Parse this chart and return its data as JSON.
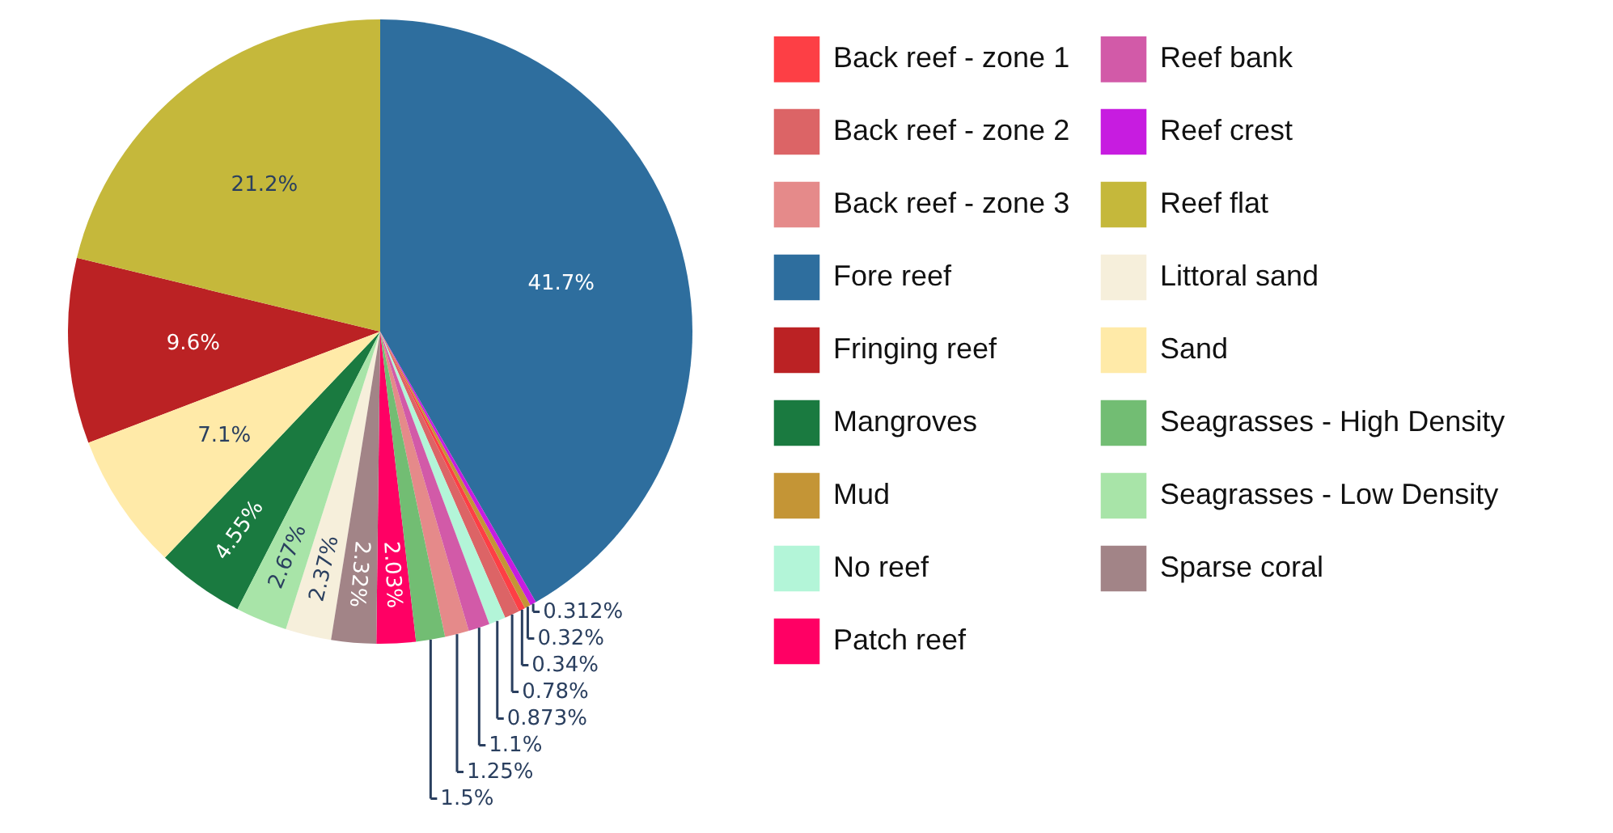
{
  "chart_data": {
    "type": "pie",
    "categories": [
      "Back reef - zone 1",
      "Back reef - zone 2",
      "Back reef - zone 3",
      "Fore reef",
      "Fringing reef",
      "Mangroves",
      "Mud",
      "No reef",
      "Patch reef",
      "Reef bank",
      "Reef crest",
      "Reef flat",
      "Littoral sand",
      "Sand",
      "Seagrasses - High Density",
      "Seagrasses - Low Density",
      "Sparse coral"
    ],
    "values": [
      0.34,
      0.78,
      1.25,
      41.7,
      9.6,
      4.55,
      0.32,
      0.873,
      2.03,
      1.1,
      0.312,
      21.2,
      2.37,
      7.1,
      1.5,
      2.67,
      2.32
    ],
    "value_labels": [
      "0.34%",
      "0.78%",
      "1.25%",
      "41.7%",
      "9.6%",
      "4.55%",
      "0.32%",
      "0.873%",
      "2.03%",
      "1.1%",
      "0.312%",
      "21.2%",
      "2.37%",
      "7.1%",
      "1.5%",
      "2.67%",
      "2.32%"
    ],
    "colors": [
      "#fd3f45",
      "#dc6466",
      "#e58a8a",
      "#2e6e9e",
      "#bb2224",
      "#1a7a40",
      "#c49536",
      "#b3f5d8",
      "#ff0064",
      "#d25aa8",
      "#c71ce0",
      "#c5b83b",
      "#f6efdb",
      "#ffeaa8",
      "#72bd73",
      "#a8e4a8",
      "#a28487"
    ],
    "legend": "right"
  }
}
